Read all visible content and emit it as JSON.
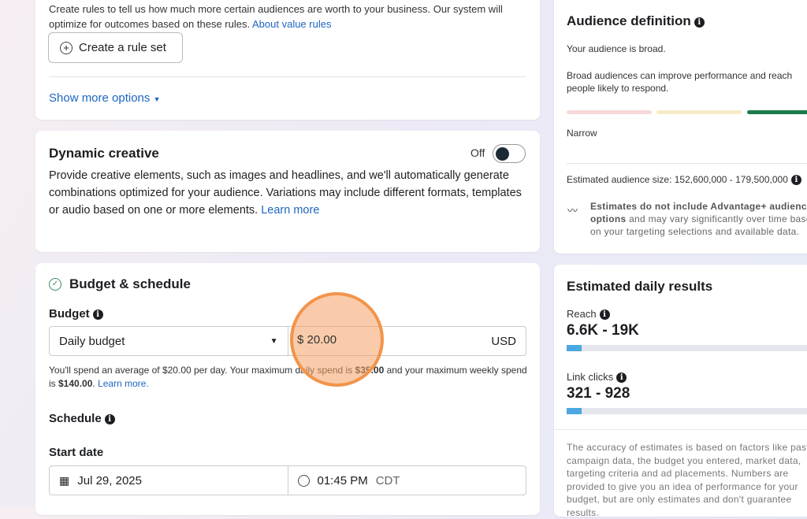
{
  "value_rules": {
    "description": "Create rules to tell us how much more certain audiences are worth to your business. Our system will optimize for outcomes based on these rules.",
    "link": "About value rules",
    "create_button": "Create a rule set",
    "show_more": "Show more options"
  },
  "dynamic_creative": {
    "title": "Dynamic creative",
    "toggle_label": "Off",
    "toggle_on": false,
    "description": "Provide creative elements, such as images and headlines, and we'll automatically generate combinations optimized for your audience. Variations may include different formats, templates or audio based on one or more elements.",
    "link": "Learn more"
  },
  "budget_schedule": {
    "title": "Budget & schedule",
    "budget_label": "Budget",
    "budget_type": "Daily budget",
    "amount": "$ 20.00",
    "currency": "USD",
    "note_1": "You'll spend an average of $20.00 per day. Your maximum daily spend is ",
    "note_max_daily": "$35.00",
    "note_2": " and your maximum weekly spend is ",
    "note_max_weekly": "$140.00",
    "note_3": ".",
    "learn_more": "Learn more.",
    "schedule_label": "Schedule",
    "start_date_label": "Start date",
    "start_date": "Jul 29, 2025",
    "start_time": "01:45 PM",
    "timezone": "CDT"
  },
  "audience": {
    "title": "Audience definition",
    "status": "Your audience is broad.",
    "description": "Broad audiences can improve performance and reach people likely to respond.",
    "narrow_label": "Narrow",
    "colors": [
      "#f7d9da",
      "#f6edc6",
      "#1d7a4c"
    ],
    "size_text": "Estimated audience size: 152,600,000 - 179,500,000",
    "note_bold": "Estimates do not include Advantage+ audience options",
    "note_rest": " and may vary significantly over time based on your targeting selections and available data."
  },
  "results": {
    "title": "Estimated daily results",
    "reach_label": "Reach",
    "reach_value": "6.6K - 19K",
    "reach_fill_percent": 6,
    "clicks_label": "Link clicks",
    "clicks_value": "321 - 928",
    "clicks_fill_percent": 6,
    "disclaimer": "The accuracy of estimates is based on factors like past campaign data, the budget you entered, market data, targeting criteria and ad placements. Numbers are provided to give you an idea of performance for your budget, but are only estimates and don't guarantee results."
  }
}
